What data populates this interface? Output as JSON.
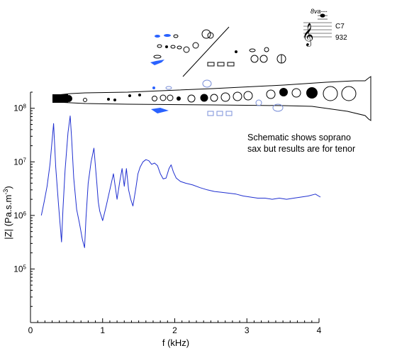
{
  "chart_data": {
    "type": "line",
    "title": "",
    "xlabel": "f (kHz)",
    "ylabel_parts": [
      "|Z| (Pa.s.m",
      "-3",
      ")"
    ],
    "xlim": [
      0,
      4
    ],
    "ylim": [
      10000,
      200000000
    ],
    "yscale": "log",
    "grid": false,
    "x_ticks": [
      0,
      1,
      2,
      3,
      4
    ],
    "x_tick_labels": [
      "0",
      "1",
      "2",
      "3",
      "4"
    ],
    "y_ticks": [
      100000,
      1000000,
      10000000,
      100000000
    ],
    "y_tick_labels": [
      {
        "base": "10",
        "exp": "5"
      },
      {
        "base": "10",
        "exp": "6"
      },
      {
        "base": "10",
        "exp": "7"
      },
      {
        "base": "10",
        "exp": "8"
      }
    ],
    "series": [
      {
        "color": "#1f2fd0",
        "x": [
          0.15,
          0.19,
          0.23,
          0.27,
          0.3,
          0.32,
          0.35,
          0.39,
          0.43,
          0.45,
          0.48,
          0.52,
          0.55,
          0.57,
          0.6,
          0.64,
          0.68,
          0.72,
          0.75,
          0.77,
          0.8,
          0.84,
          0.88,
          0.92,
          0.94,
          0.96,
          1.0,
          1.05,
          1.1,
          1.15,
          1.2,
          1.24,
          1.27,
          1.3,
          1.33,
          1.36,
          1.39,
          1.42,
          1.46,
          1.49,
          1.52,
          1.56,
          1.6,
          1.64,
          1.68,
          1.72,
          1.76,
          1.8,
          1.84,
          1.88,
          1.92,
          1.95,
          1.98,
          2.02,
          2.08,
          2.15,
          2.25,
          2.35,
          2.45,
          2.55,
          2.65,
          2.75,
          2.85,
          2.95,
          3.05,
          3.15,
          3.25,
          3.35,
          3.45,
          3.55,
          3.65,
          3.75,
          3.85,
          3.95,
          4.02
        ],
        "y": [
          1000000,
          1800000,
          3500000,
          9000000,
          25000000,
          52000000,
          8000000,
          1500000,
          320000,
          1300000,
          7000000,
          35000000,
          72000000,
          28000000,
          5000000,
          1300000,
          700000,
          350000,
          250000,
          900000,
          4000000,
          10000000,
          18000000,
          4000000,
          1800000,
          1200000,
          800000,
          1500000,
          3000000,
          6000000,
          2000000,
          4500000,
          7500000,
          3500000,
          7500000,
          3000000,
          2000000,
          1500000,
          3200000,
          6000000,
          8000000,
          10000000,
          11000000,
          10500000,
          9000000,
          9500000,
          8500000,
          6000000,
          4800000,
          5000000,
          7500000,
          8800000,
          6500000,
          5000000,
          4300000,
          4000000,
          3700000,
          3300000,
          3000000,
          2800000,
          2700000,
          2600000,
          2500000,
          2300000,
          2200000,
          2100000,
          2100000,
          2000000,
          2100000,
          2000000,
          2100000,
          2200000,
          2300000,
          2500000,
          2200000
        ]
      }
    ]
  },
  "annotation": {
    "lines": [
      "Schematic shows soprano",
      "sax but results are for tenor"
    ]
  },
  "note_inset": {
    "ottava": "8va---",
    "note_name": "C7",
    "frequency": "932"
  },
  "colors": {
    "curve": "#1f2fd0",
    "fingering_highlight": "#2a62ff",
    "fingering_ghost": "#7a8fd8",
    "ink": "#000000"
  }
}
